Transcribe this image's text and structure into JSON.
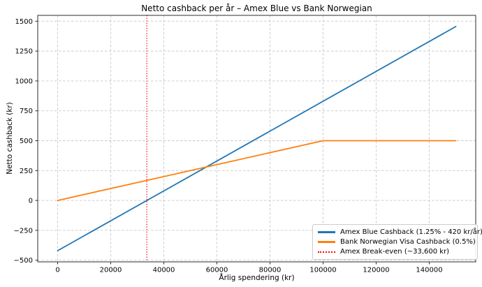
{
  "chart_data": {
    "type": "line",
    "title": "Netto cashback per år – Amex Blue vs Bank Norwegian",
    "xlabel": "Årlig spendering (kr)",
    "ylabel": "Netto cashback (kr)",
    "xlim": [
      -7500,
      157500
    ],
    "ylim": [
      -513.75,
      1548.75
    ],
    "xticks": [
      0,
      20000,
      40000,
      60000,
      80000,
      100000,
      120000,
      140000
    ],
    "xtick_labels": [
      "0",
      "20000",
      "40000",
      "60000",
      "80000",
      "100000",
      "120000",
      "140000"
    ],
    "yticks": [
      -500,
      -250,
      0,
      250,
      500,
      750,
      1000,
      1250,
      1500
    ],
    "ytick_labels": [
      "−500",
      "−250",
      "0",
      "250",
      "500",
      "750",
      "1000",
      "1250",
      "1500"
    ],
    "grid": true,
    "legend_position": "lower right",
    "series": [
      {
        "name": "Amex Blue Cashback (1.25% - 420 kr/år)",
        "color": "#1f77b4",
        "style": "solid",
        "points": [
          [
            0,
            -420
          ],
          [
            150000,
            1455
          ]
        ]
      },
      {
        "name": "Bank Norwegian Visa Cashback (0.5%)",
        "color": "#ff7f0e",
        "style": "solid",
        "points": [
          [
            0,
            0
          ],
          [
            100000,
            500
          ],
          [
            150000,
            500
          ]
        ]
      }
    ],
    "vline": {
      "name": "Amex Break-even (~33,600 kr)",
      "color": "#ff0000",
      "style": "dotted",
      "x": 33600
    },
    "legend": [
      {
        "label": "Amex Blue Cashback (1.25% - 420 kr/år)",
        "color": "#1f77b4",
        "style": "solid"
      },
      {
        "label": "Bank Norwegian Visa Cashback (0.5%)",
        "color": "#ff7f0e",
        "style": "solid"
      },
      {
        "label": "Amex Break-even (~33,600 kr)",
        "color": "#ff0000",
        "style": "dotted"
      }
    ]
  }
}
